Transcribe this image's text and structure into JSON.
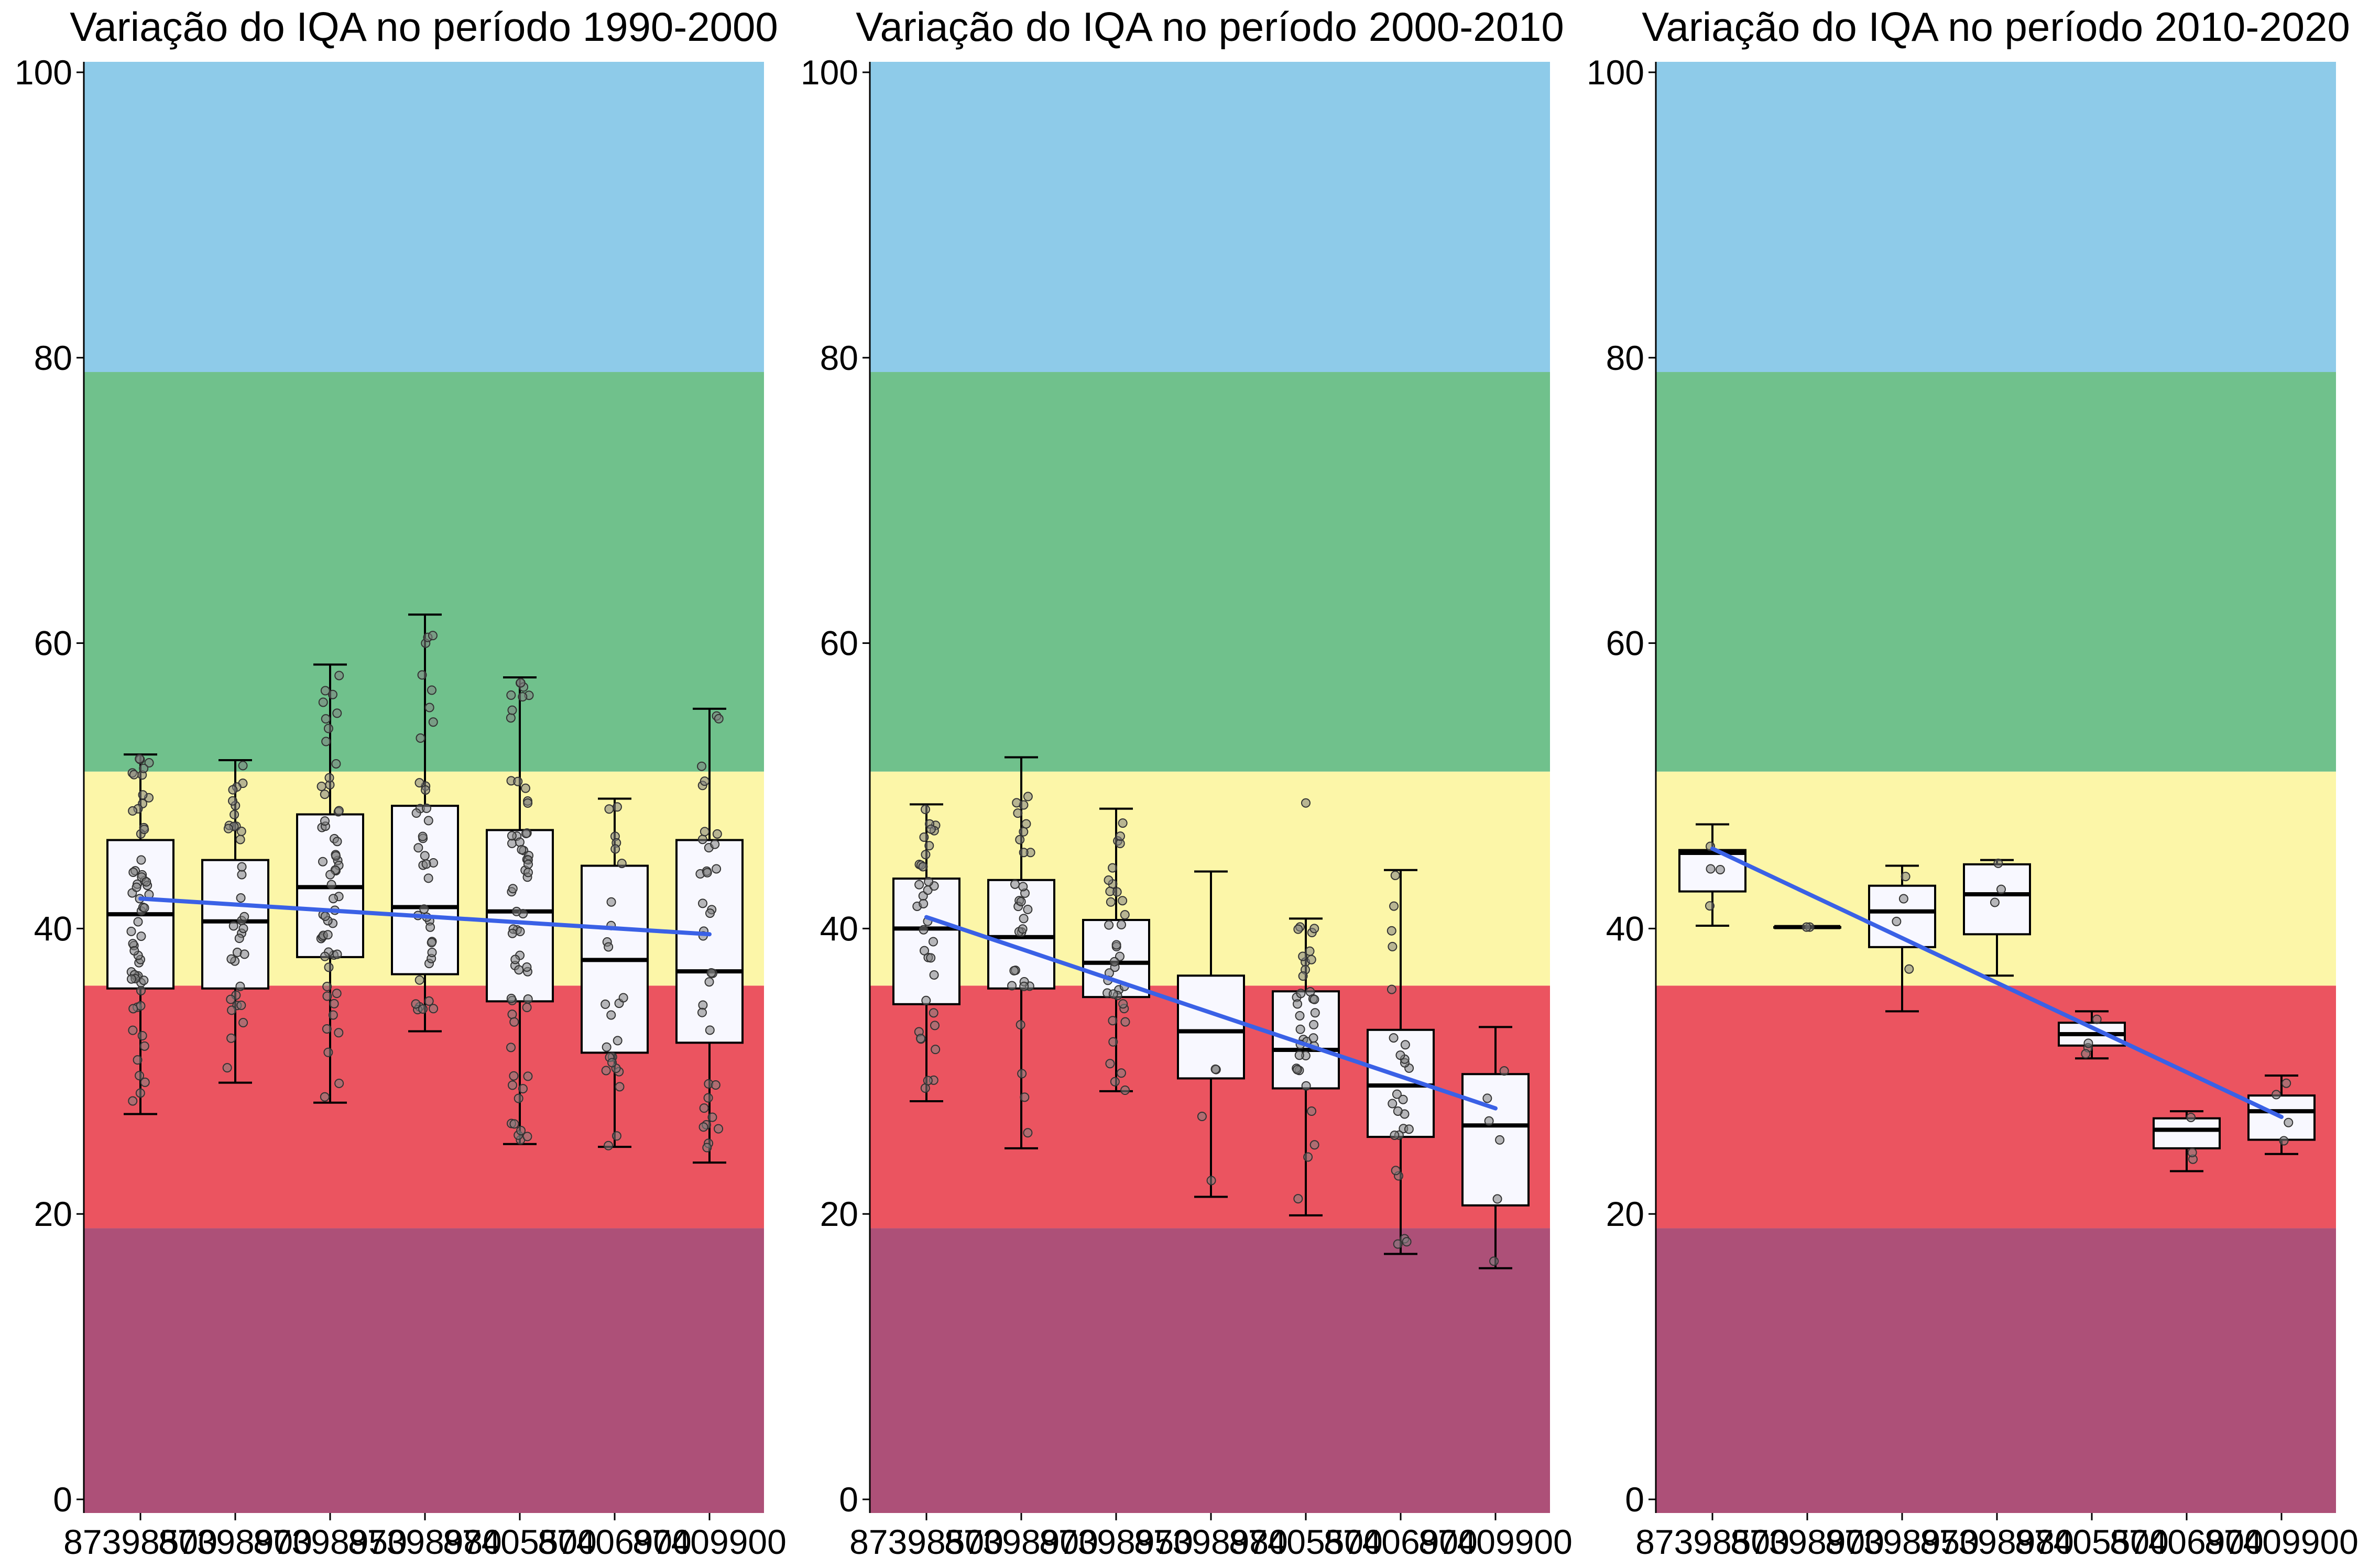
{
  "figure": {
    "bands": [
      {
        "name": "band-poor-purple",
        "from": 0,
        "to": 19,
        "color": "#AD5078"
      },
      {
        "name": "band-bad-red",
        "from": 19,
        "to": 36,
        "color": "#EB5460"
      },
      {
        "name": "band-regular-yellow",
        "from": 36,
        "to": 51,
        "color": "#FCF6A8"
      },
      {
        "name": "band-good-green",
        "from": 51,
        "to": 79,
        "color": "#70C18C"
      },
      {
        "name": "band-excellent-blue",
        "from": 79,
        "to": 100,
        "color": "#8ECBE9"
      }
    ],
    "colors": {
      "box_fill": "#F8F8FF",
      "box_edge": "#000000",
      "trend_line": "#3A61E6",
      "point": "#7F7F7F"
    }
  },
  "chart_data": [
    {
      "type": "box",
      "title": "Variação do IQA no período 1990-2000",
      "xlabel": "",
      "ylabel": "",
      "ylim": [
        0,
        100
      ],
      "yticks": [
        0,
        20,
        40,
        60,
        80,
        100
      ],
      "grid": false,
      "categories": [
        "87398500",
        "87398900",
        "87398950",
        "87398980",
        "87405500",
        "87406900",
        "87409900"
      ],
      "xtick_labels": [
        "87398500",
        "87398900",
        "87398950",
        "87398980",
        "87405500",
        "87406900",
        "87409900"
      ],
      "boxes": [
        {
          "whisker_low": 27,
          "q1": 35.8,
          "median": 41,
          "q3": 46.2,
          "whisker_high": 52.2
        },
        {
          "whisker_low": 29.2,
          "q1": 35.8,
          "median": 40.5,
          "q3": 44.8,
          "whisker_high": 51.8
        },
        {
          "whisker_low": 27.8,
          "q1": 38,
          "median": 42.9,
          "q3": 48,
          "whisker_high": 58.5
        },
        {
          "whisker_low": 32.8,
          "q1": 36.8,
          "median": 41.5,
          "q3": 48.6,
          "whisker_high": 62
        },
        {
          "whisker_low": 24.9,
          "q1": 34.9,
          "median": 41.2,
          "q3": 46.9,
          "whisker_high": 57.6
        },
        {
          "whisker_low": 24.7,
          "q1": 31.3,
          "median": 37.8,
          "q3": 44.4,
          "whisker_high": 49.1
        },
        {
          "whisker_low": 23.6,
          "q1": 32,
          "median": 37,
          "q3": 46.2,
          "whisker_high": 55.4
        }
      ],
      "point_counts": [
        60,
        35,
        55,
        40,
        60,
        25,
        35
      ],
      "trend": {
        "start": 42.1,
        "end": 39.6
      }
    },
    {
      "type": "box",
      "title": "Variação do IQA no período 2000-2010",
      "xlabel": "",
      "ylabel": "",
      "ylim": [
        0,
        100
      ],
      "yticks": [
        0,
        20,
        40,
        60,
        80,
        100
      ],
      "grid": false,
      "categories": [
        "87398500",
        "87398900",
        "87398950",
        "87398980",
        "87405500",
        "87406900",
        "87409900"
      ],
      "xtick_labels": [
        "87398500",
        "87398900",
        "87398950",
        "87398980",
        "87405500",
        "87406900",
        "87409900"
      ],
      "boxes": [
        {
          "whisker_low": 27.9,
          "q1": 34.7,
          "median": 40,
          "q3": 43.5,
          "whisker_high": 48.7
        },
        {
          "whisker_low": 24.6,
          "q1": 35.8,
          "median": 39.4,
          "q3": 43.4,
          "whisker_high": 52
        },
        {
          "whisker_low": 28.6,
          "q1": 35.2,
          "median": 37.6,
          "q3": 40.6,
          "whisker_high": 48.4
        },
        {
          "whisker_low": 21.2,
          "q1": 29.5,
          "median": 32.8,
          "q3": 36.7,
          "whisker_high": 44
        },
        {
          "whisker_low": 19.9,
          "q1": 28.8,
          "median": 31.5,
          "q3": 35.6,
          "whisker_high": 40.7
        },
        {
          "whisker_low": 17.2,
          "q1": 25.4,
          "median": 29,
          "q3": 32.9,
          "whisker_high": 44.1
        },
        {
          "whisker_low": 16.2,
          "q1": 20.6,
          "median": 26.2,
          "q3": 29.8,
          "whisker_high": 33.1
        }
      ],
      "outliers": [
        [],
        [],
        [],
        [],
        [
          48.8
        ],
        [],
        []
      ],
      "point_counts": [
        35,
        30,
        35,
        4,
        35,
        25,
        6
      ],
      "trend": {
        "start": 40.8,
        "end": 27.4
      }
    },
    {
      "type": "box",
      "title": "Variação do IQA no período 2010-2020",
      "xlabel": "",
      "ylabel": "",
      "ylim": [
        0,
        100
      ],
      "yticks": [
        0,
        20,
        40,
        60,
        80,
        100
      ],
      "grid": false,
      "categories": [
        "87398500",
        "87398900",
        "87398950",
        "87398980",
        "87405500",
        "87406900",
        "87409900"
      ],
      "xtick_labels": [
        "87398500",
        "87398900",
        "87398950",
        "87398980",
        "87405500",
        "87406900",
        "87409900"
      ],
      "boxes": [
        {
          "whisker_low": 40.2,
          "q1": 42.6,
          "median": 45.3,
          "q3": 45.5,
          "whisker_high": 47.3
        },
        {
          "whisker_low": 40.1,
          "q1": 40.1,
          "median": 40.1,
          "q3": 40.1,
          "whisker_high": 40.1
        },
        {
          "whisker_low": 34.2,
          "q1": 38.7,
          "median": 41.2,
          "q3": 43,
          "whisker_high": 44.4
        },
        {
          "whisker_low": 36.7,
          "q1": 39.6,
          "median": 42.4,
          "q3": 44.5,
          "whisker_high": 44.8
        },
        {
          "whisker_low": 30.9,
          "q1": 31.8,
          "median": 32.6,
          "q3": 33.4,
          "whisker_high": 34.2
        },
        {
          "whisker_low": 23,
          "q1": 24.6,
          "median": 25.9,
          "q3": 26.7,
          "whisker_high": 27.2
        },
        {
          "whisker_low": 24.2,
          "q1": 25.2,
          "median": 27.2,
          "q3": 28.3,
          "whisker_high": 29.7
        }
      ],
      "point_counts": [
        4,
        2,
        4,
        3,
        4,
        3,
        4
      ],
      "trend": {
        "start": 45.6,
        "end": 26.8
      }
    }
  ]
}
